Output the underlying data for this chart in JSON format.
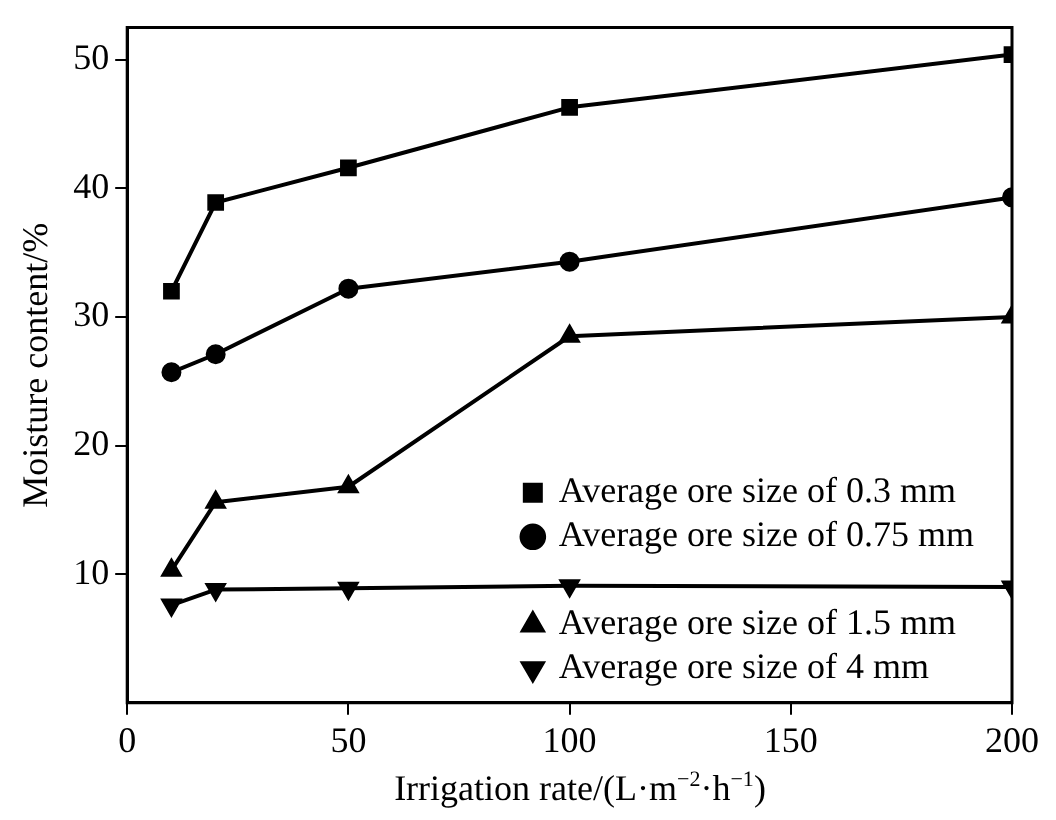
{
  "chart_data": {
    "type": "line",
    "xlabel": "Irrigation rate/(L·m$^{−2}$·h$^{−1}$)",
    "ylabel": "Moisture content/%",
    "x": [
      10,
      20,
      50,
      100,
      200
    ],
    "xlim": [
      0,
      200
    ],
    "xticks": [
      0,
      50,
      100,
      150,
      200
    ],
    "ylim": [
      0,
      52.5
    ],
    "yticks": [
      10,
      20,
      30,
      40,
      50
    ],
    "grid": false,
    "legend": "bottom right",
    "line_style": "solid",
    "series": [
      {
        "name": "Average ore size of 0.3 mm",
        "color": "#000000",
        "marker": "square",
        "values": [
          32.0,
          38.9,
          41.6,
          46.3,
          50.4
        ]
      },
      {
        "name": "Average ore size of 0.75 mm",
        "color": "#000000",
        "marker": "circle",
        "values": [
          25.7,
          27.1,
          32.2,
          34.3,
          39.3
        ]
      },
      {
        "name": "Average ore size of 1.5 mm",
        "color": "#000000",
        "marker": "triangle",
        "values": [
          10.3,
          15.6,
          16.8,
          28.5,
          30.0
        ]
      },
      {
        "name": "Average ore size of 4 mm",
        "color": "#000000",
        "marker": "triangle-down",
        "values": [
          7.6,
          8.8,
          8.9,
          9.1,
          9.0
        ]
      }
    ]
  }
}
